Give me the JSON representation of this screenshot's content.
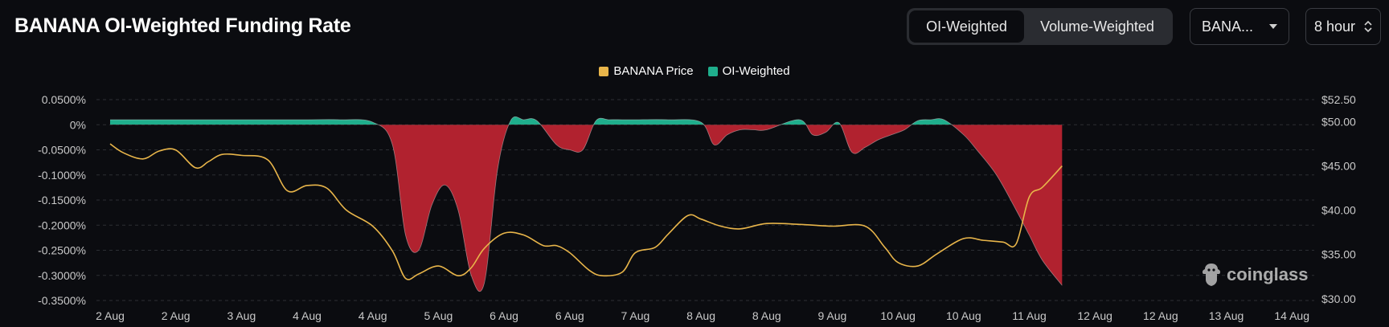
{
  "header": {
    "title": "BANANA OI-Weighted Funding Rate",
    "tabs": [
      {
        "label": "OI-Weighted",
        "active": true
      },
      {
        "label": "Volume-Weighted",
        "active": false
      }
    ],
    "symbol_select": "BANA...",
    "interval_select": "8 hour"
  },
  "watermark": "coinglass",
  "colors": {
    "price_line": "#e8b54a",
    "positive_area": "#1fae8c",
    "negative_area": "#b1222f",
    "grid": "#2c2e33"
  },
  "chart_data": {
    "type": "area",
    "title": "",
    "x_labels": [
      "2 Aug",
      "2 Aug",
      "3 Aug",
      "4 Aug",
      "4 Aug",
      "5 Aug",
      "6 Aug",
      "6 Aug",
      "7 Aug",
      "8 Aug",
      "8 Aug",
      "9 Aug",
      "10 Aug",
      "10 Aug",
      "11 Aug",
      "12 Aug",
      "12 Aug",
      "13 Aug",
      "14 Aug"
    ],
    "y_left": {
      "ticks": [
        "0.0500%",
        "0%",
        "-0.0500%",
        "-0.1000%",
        "-0.1500%",
        "-0.2000%",
        "-0.2500%",
        "-0.3000%",
        "-0.3500%"
      ],
      "range": [
        -0.35,
        0.05
      ]
    },
    "y_right": {
      "ticks": [
        "$52.50",
        "$50.00",
        "$45.00",
        "$40.00",
        "$35.00",
        "$30.00"
      ],
      "range": [
        29.8,
        52.5
      ]
    },
    "legend": [
      "BANANA Price",
      "OI-Weighted"
    ],
    "legend_colors": [
      "#e8b54a",
      "#1fae8c"
    ],
    "series": [
      {
        "name": "OI-Weighted",
        "unit": "%",
        "x": [
          0,
          0.5,
          1,
          1.5,
          2,
          2.5,
          3,
          3.5,
          4,
          4.3,
          4.5,
          4.7,
          4.9,
          5.1,
          5.3,
          5.5,
          5.7,
          5.9,
          6.1,
          6.3,
          6.5,
          6.8,
          7,
          7.2,
          7.4,
          7.6,
          7.8,
          8,
          8.5,
          9,
          9.2,
          9.4,
          9.6,
          9.8,
          10,
          10.5,
          10.7,
          10.9,
          11.1,
          11.3,
          11.5,
          11.7,
          11.9,
          12.1,
          12.3,
          12.5,
          12.7,
          13,
          13.2,
          13.5,
          13.8,
          14,
          14.2,
          14.5
        ],
        "values": [
          0.01,
          0.01,
          0.01,
          0.01,
          0.01,
          0.01,
          0.01,
          0.01,
          0.005,
          -0.04,
          -0.22,
          -0.25,
          -0.16,
          -0.12,
          -0.17,
          -0.3,
          -0.315,
          -0.09,
          0.008,
          0.01,
          0.008,
          -0.04,
          -0.05,
          -0.05,
          0.008,
          0.01,
          0.01,
          0.01,
          0.01,
          0.005,
          -0.04,
          -0.02,
          -0.01,
          -0.01,
          -0.01,
          0.01,
          -0.02,
          -0.015,
          0.004,
          -0.055,
          -0.045,
          -0.03,
          -0.02,
          -0.01,
          0.008,
          0.01,
          0.01,
          -0.02,
          -0.05,
          -0.1,
          -0.17,
          -0.22,
          -0.27,
          -0.32
        ]
      },
      {
        "name": "BANANA Price",
        "unit": "$",
        "x": [
          0,
          0.2,
          0.5,
          0.75,
          1,
          1.3,
          1.5,
          1.7,
          2,
          2.4,
          2.7,
          3,
          3.3,
          3.6,
          4,
          4.3,
          4.5,
          4.7,
          5,
          5.3,
          5.5,
          5.7,
          6,
          6.3,
          6.6,
          6.8,
          7,
          7.3,
          7.5,
          7.8,
          8,
          8.3,
          8.5,
          8.8,
          9,
          9.3,
          9.6,
          10,
          10.5,
          11,
          11.5,
          11.8,
          12,
          12.3,
          12.6,
          13,
          13.3,
          13.6,
          13.8,
          14,
          14.2,
          14.5
        ],
        "values": [
          47.5,
          46.5,
          45.8,
          46.7,
          46.8,
          44.8,
          45.5,
          46.3,
          46.2,
          45.7,
          42.2,
          42.8,
          42.5,
          40.0,
          38.2,
          35.4,
          32.3,
          32.8,
          33.7,
          32.6,
          33.5,
          35.7,
          37.4,
          37.2,
          36.0,
          36.0,
          35.2,
          33.2,
          32.6,
          33.0,
          35.2,
          35.8,
          37.3,
          39.4,
          39.0,
          38.2,
          37.9,
          38.5,
          38.4,
          38.2,
          38.2,
          35.8,
          34.1,
          33.7,
          35.1,
          36.8,
          36.6,
          36.4,
          36.2,
          41.5,
          42.6,
          45.0
        ]
      }
    ],
    "grid": true,
    "legend_position": "top-center"
  }
}
